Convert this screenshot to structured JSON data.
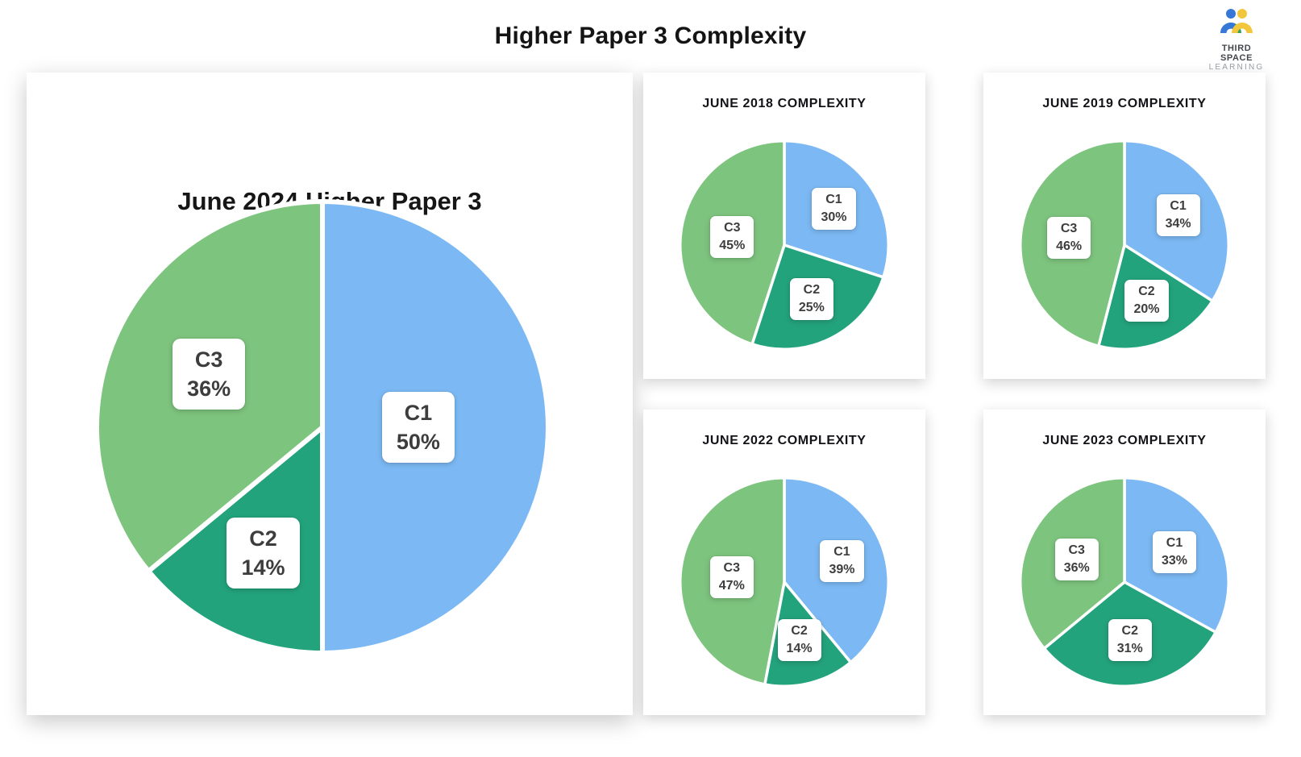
{
  "page": {
    "title": "Higher Paper 3 Complexity"
  },
  "logo": {
    "line1": "THIRD SPACE",
    "line2": "LEARNING",
    "colors": {
      "blue": "#3678d8",
      "yellow": "#f2c73b",
      "green": "#3aa05a"
    }
  },
  "colors": {
    "C1": "#7cb9f4",
    "C2": "#23a37c",
    "C3": "#7dc47e"
  },
  "chart_data": [
    {
      "type": "pie",
      "title": "June 2024 Higher Paper 3",
      "labels": [
        "C1",
        "C2",
        "C3"
      ],
      "values": [
        50,
        14,
        36
      ],
      "start_angle": "top",
      "direction": "clockwise",
      "legend": "none",
      "data_labels": [
        "C1 50%",
        "C2 14%",
        "C3 36%"
      ]
    },
    {
      "type": "pie",
      "title": "JUNE 2018 COMPLEXITY",
      "labels": [
        "C1",
        "C2",
        "C3"
      ],
      "values": [
        30,
        25,
        45
      ],
      "start_angle": "top",
      "direction": "clockwise",
      "legend": "none",
      "data_labels": [
        "C1 30%",
        "C2 25%",
        "C3 45%"
      ]
    },
    {
      "type": "pie",
      "title": "JUNE 2019 COMPLEXITY",
      "labels": [
        "C1",
        "C2",
        "C3"
      ],
      "values": [
        34,
        20,
        46
      ],
      "start_angle": "top",
      "direction": "clockwise",
      "legend": "none",
      "data_labels": [
        "C1 34%",
        "C2 20%",
        "C3 46%"
      ]
    },
    {
      "type": "pie",
      "title": "JUNE 2022 COMPLEXITY",
      "labels": [
        "C1",
        "C2",
        "C3"
      ],
      "values": [
        39,
        14,
        47
      ],
      "start_angle": "top",
      "direction": "clockwise",
      "legend": "none",
      "data_labels": [
        "C1 39%",
        "C2 14%",
        "C3 47%"
      ]
    },
    {
      "type": "pie",
      "title": "JUNE 2023 COMPLEXITY",
      "labels": [
        "C1",
        "C2",
        "C3"
      ],
      "values": [
        33,
        31,
        36
      ],
      "start_angle": "top",
      "direction": "clockwise",
      "legend": "none",
      "data_labels": [
        "C1 33%",
        "C2 31%",
        "C3 36%"
      ]
    }
  ]
}
